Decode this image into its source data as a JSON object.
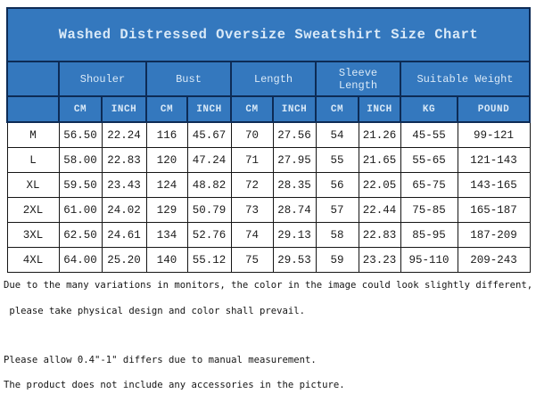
{
  "title": "Washed Distressed Oversize Sweatshirt Size Chart",
  "table": {
    "groups": [
      "Shouler",
      "Bust",
      "Length",
      "Sleeve Length",
      "Suitable Weight"
    ],
    "units": [
      "CM",
      "INCH",
      "CM",
      "INCH",
      "CM",
      "INCH",
      "CM",
      "INCH",
      "KG",
      "POUND"
    ],
    "rows": [
      {
        "size": "M",
        "cells": [
          "56.50",
          "22.24",
          "116",
          "45.67",
          "70",
          "27.56",
          "54",
          "21.26",
          "45-55",
          "99-121"
        ]
      },
      {
        "size": "L",
        "cells": [
          "58.00",
          "22.83",
          "120",
          "47.24",
          "71",
          "27.95",
          "55",
          "21.65",
          "55-65",
          "121-143"
        ]
      },
      {
        "size": "XL",
        "cells": [
          "59.50",
          "23.43",
          "124",
          "48.82",
          "72",
          "28.35",
          "56",
          "22.05",
          "65-75",
          "143-165"
        ]
      },
      {
        "size": "2XL",
        "cells": [
          "61.00",
          "24.02",
          "129",
          "50.79",
          "73",
          "28.74",
          "57",
          "22.44",
          "75-85",
          "165-187"
        ]
      },
      {
        "size": "3XL",
        "cells": [
          "62.50",
          "24.61",
          "134",
          "52.76",
          "74",
          "29.13",
          "58",
          "22.83",
          "85-95",
          "187-209"
        ]
      },
      {
        "size": "4XL",
        "cells": [
          "64.00",
          "25.20",
          "140",
          "55.12",
          "75",
          "29.53",
          "59",
          "23.23",
          "95-110",
          "209-243"
        ]
      }
    ]
  },
  "notes": {
    "line1": "Due to the many variations in monitors, the color in the image could look slightly different,",
    "line2": " please take physical design and color shall prevail.",
    "line3": "Please allow 0.4\"-1\" differs due to manual measurement.",
    "line4": "The product does not include any accessories in the picture."
  },
  "colors": {
    "header_blue": "#3478BE",
    "header_border": "#0D2B55",
    "header_text": "#D9E9F7",
    "data_text": "#1C1C1C",
    "data_border": "#161616"
  }
}
